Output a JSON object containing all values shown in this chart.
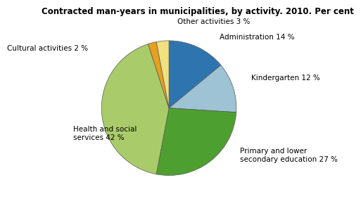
{
  "title": "Contracted man-years in municipalities, by activity. 2010. Per cent",
  "slices": [
    {
      "label": "Administration 14 %",
      "value": 14,
      "color": "#2E75B0"
    },
    {
      "label": "Kindergarten 12 %",
      "value": 12,
      "color": "#9DC3D4"
    },
    {
      "label": "Primary and lower\nsecondary education 27 %",
      "value": 27,
      "color": "#4DA030"
    },
    {
      "label": "Health and social\nservices 42 %",
      "value": 42,
      "color": "#AACB6A"
    },
    {
      "label": "Cultural activities 2 %",
      "value": 2,
      "color": "#E8A020"
    },
    {
      "label": "Other activities 3 %",
      "value": 3,
      "color": "#F0E080"
    }
  ],
  "startangle": 90,
  "background_color": "#ffffff",
  "title_fontsize": 8.5,
  "label_fontsize": 7.5
}
